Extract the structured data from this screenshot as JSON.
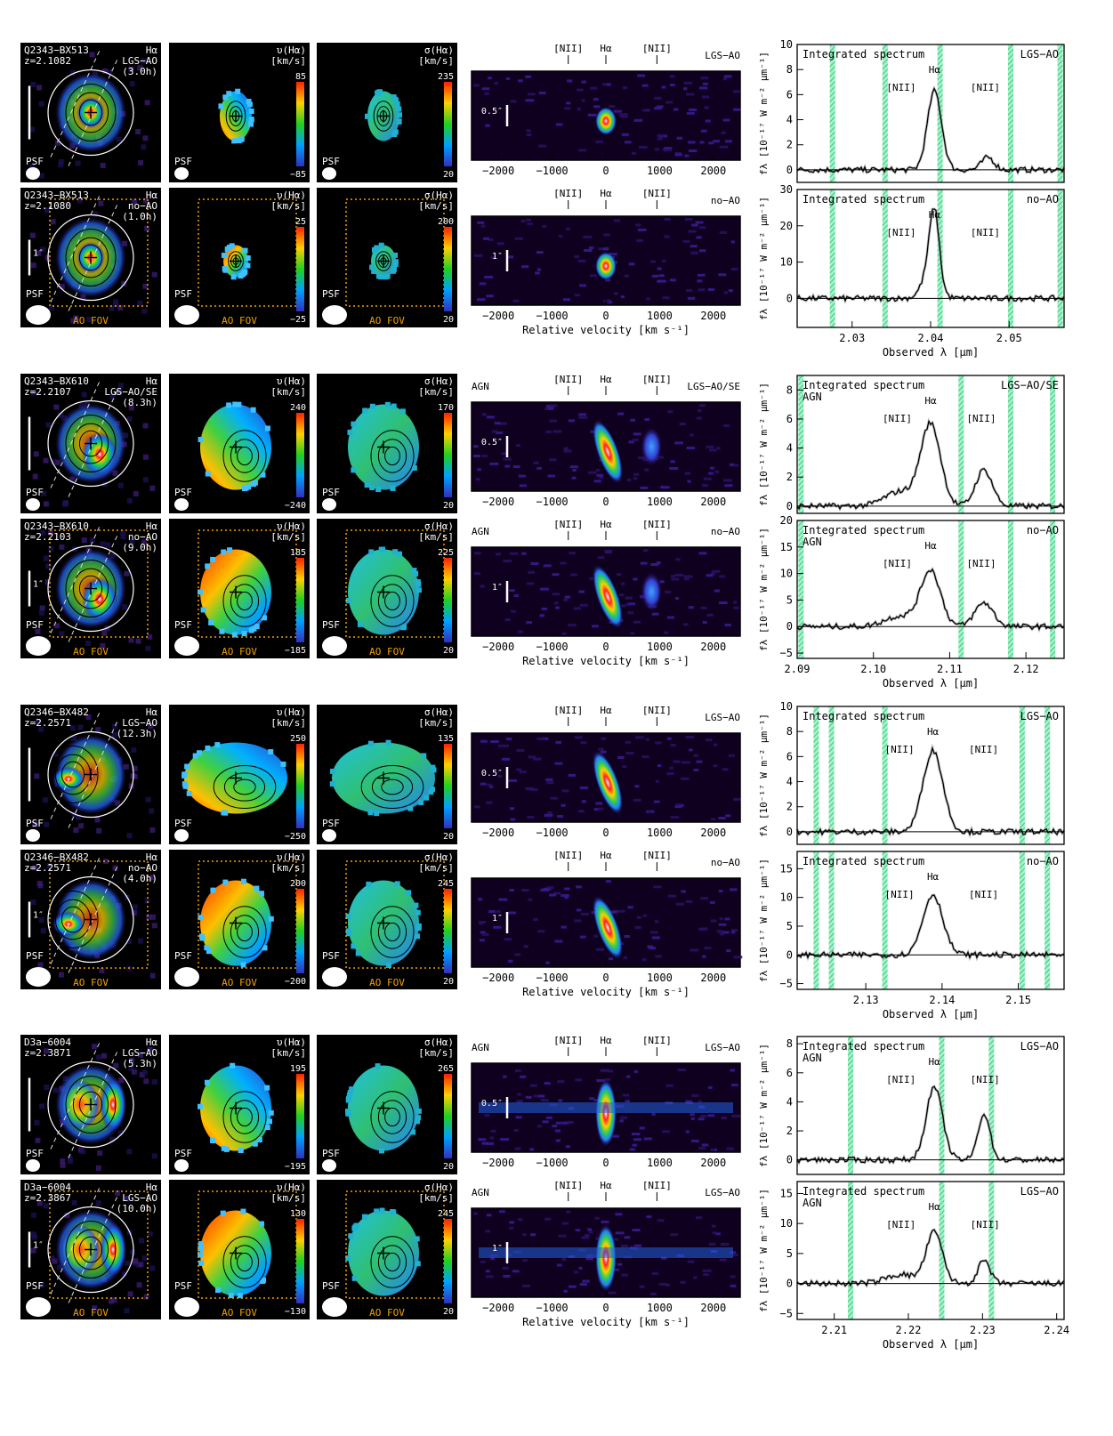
{
  "labels": {
    "psf": "PSF",
    "ao_fov": "AO FOV",
    "halpha": "Hα",
    "nii": "[NII]",
    "integrated_spectrum": "Integrated spectrum",
    "agn": "AGN",
    "velocity_map_title": "υ(Hα)",
    "dispersion_map_title": "σ(Hα)",
    "map_unit": "[km/s]",
    "arcsec_1": "1″",
    "arcsec_05": "0.5″",
    "pv_xlabel": "Relative velocity  [km s⁻¹]",
    "spec_xlabel": "Observed λ  [μm]",
    "spec_ylabel": "fλ [10⁻¹⁷ W m⁻² μm⁻¹]"
  },
  "pv_ticks": [
    "−2000",
    "−1000",
    "0",
    "1000",
    "2000"
  ],
  "rows": [
    {
      "object": "Q2343−BX513",
      "redshift": "z=2.1082",
      "mode": "LGS−AO",
      "exptime": "(3.0h)",
      "vmax": "85",
      "vmin": "−85",
      "smax": "235",
      "smin": "20",
      "scale": "0.5″",
      "agn": false,
      "ao_fov": false,
      "colors": {
        "peak": "#ffffff",
        "body": "#00c8ff"
      },
      "spec": {
        "ylim": [
          -1,
          10
        ],
        "yticks": [
          "0",
          "2",
          "4",
          "6",
          "8",
          "10"
        ],
        "xlim": [
          2.023,
          2.057
        ],
        "xticks": [],
        "peaks": [
          {
            "x": 2.0405,
            "h": 6.3,
            "w": 0.0009
          },
          {
            "x": 2.0473,
            "h": 1.0,
            "w": 0.0008
          }
        ],
        "sky": [
          2.0275,
          2.0342,
          2.0412,
          2.0502,
          2.0565
        ],
        "mode": "LGS−AO"
      }
    },
    {
      "object": "Q2343−BX513",
      "redshift": "z=2.1080",
      "mode": "no−AO",
      "exptime": "(1.0h)",
      "vmax": "25",
      "vmin": "−25",
      "smax": "200",
      "smin": "20",
      "scale": "1″",
      "agn": false,
      "ao_fov": true,
      "colors": {
        "peak": "#ffffff",
        "body": "#00c8ff"
      },
      "spec": {
        "ylim": [
          -8,
          30
        ],
        "yticks": [
          "0",
          "10",
          "20",
          "30"
        ],
        "xlim": [
          2.023,
          2.057
        ],
        "xticks": [
          "2.03",
          "2.04",
          "2.05"
        ],
        "peaks": [
          {
            "x": 2.0405,
            "h": 18,
            "w": 0.0006
          },
          {
            "x": 2.04,
            "h": 8,
            "w": 0.001
          }
        ],
        "sky": [
          2.0275,
          2.0342,
          2.0412,
          2.0502,
          2.0565
        ],
        "mode": "no−AO"
      }
    },
    {
      "object": "Q2343−BX610",
      "redshift": "z=2.2107",
      "mode": "LGS−AO/SE",
      "exptime": "(8.3h)",
      "vmax": "240",
      "vmin": "−240",
      "smax": "170",
      "smin": "20",
      "scale": "0.5″",
      "agn": true,
      "ao_fov": false,
      "colors": {
        "peak": "#ffffff",
        "body": "#3070ff"
      },
      "spec": {
        "ylim": [
          -0.5,
          9
        ],
        "yticks": [
          "0",
          "2",
          "4",
          "6",
          "8"
        ],
        "xlim": [
          2.09,
          2.125
        ],
        "xticks": [],
        "peaks": [
          {
            "x": 2.1075,
            "h": 5.6,
            "w": 0.0013
          },
          {
            "x": 2.1145,
            "h": 2.5,
            "w": 0.0011
          },
          {
            "x": 2.1035,
            "h": 1.0,
            "w": 0.002
          }
        ],
        "sky": [
          2.0905,
          2.1115,
          2.118,
          2.1235
        ],
        "mode": "LGS−AO/SE"
      }
    },
    {
      "object": "Q2343−BX610",
      "redshift": "z=2.2103",
      "mode": "no−AO",
      "exptime": "(9.0h)",
      "vmax": "185",
      "vmin": "−185",
      "smax": "225",
      "smin": "20",
      "scale": "1″",
      "agn": true,
      "ao_fov": true,
      "colors": {
        "peak": "#ffffff",
        "body": "#40c040"
      },
      "spec": {
        "ylim": [
          -6,
          20
        ],
        "yticks": [
          "−5",
          "0",
          "5",
          "10",
          "15",
          "20"
        ],
        "xlim": [
          2.09,
          2.125
        ],
        "xticks": [
          "2.09",
          "2.10",
          "2.11",
          "2.12"
        ],
        "peaks": [
          {
            "x": 2.1075,
            "h": 10.5,
            "w": 0.0013
          },
          {
            "x": 2.1145,
            "h": 4.5,
            "w": 0.0012
          },
          {
            "x": 2.1035,
            "h": 2.0,
            "w": 0.002
          }
        ],
        "sky": [
          2.0905,
          2.1115,
          2.118,
          2.1235
        ],
        "mode": "no−AO"
      }
    },
    {
      "object": "Q2346−BX482",
      "redshift": "z=2.2571",
      "mode": "LGS−AO",
      "exptime": "(12.3h)",
      "vmax": "250",
      "vmin": "−250",
      "smax": "135",
      "smin": "20",
      "scale": "0.5″",
      "agn": false,
      "ao_fov": false,
      "colors": {
        "peak": "#ffffff",
        "body": "#3070ff"
      },
      "spec": {
        "ylim": [
          -1,
          10
        ],
        "yticks": [
          "0",
          "2",
          "4",
          "6",
          "8",
          "10"
        ],
        "xlim": [
          2.121,
          2.156
        ],
        "xticks": [],
        "peaks": [
          {
            "x": 2.1388,
            "h": 6.5,
            "w": 0.0013
          }
        ],
        "sky": [
          2.1235,
          2.1255,
          2.1325,
          2.1505,
          2.1538
        ],
        "mode": "LGS−AO"
      }
    },
    {
      "object": "Q2346−BX482",
      "redshift": "z=2.2571",
      "mode": "no−AO",
      "exptime": "(4.0h)",
      "vmax": "200",
      "vmin": "−200",
      "smax": "245",
      "smin": "20",
      "scale": "1″",
      "agn": false,
      "ao_fov": true,
      "colors": {
        "peak": "#ffffff",
        "body": "#40c040"
      },
      "spec": {
        "ylim": [
          -6,
          18
        ],
        "yticks": [
          "−5",
          "0",
          "5",
          "10",
          "15"
        ],
        "xlim": [
          2.121,
          2.156
        ],
        "xticks": [
          "2.13",
          "2.14",
          "2.15"
        ],
        "peaks": [
          {
            "x": 2.1388,
            "h": 10.5,
            "w": 0.0013
          }
        ],
        "sky": [
          2.1235,
          2.1255,
          2.1325,
          2.1505,
          2.1538
        ],
        "mode": "no−AO"
      }
    },
    {
      "object": "D3a−6004",
      "redshift": "z=2.3871",
      "mode": "LGS−AO",
      "exptime": "(5.3h)",
      "vmax": "195",
      "vmin": "−195",
      "smax": "265",
      "smin": "20",
      "scale": "0.5″",
      "agn": true,
      "ao_fov": false,
      "colors": {
        "peak": "#ffffff",
        "body": "#30d0ff"
      },
      "spec": {
        "ylim": [
          -1,
          8.5
        ],
        "yticks": [
          "0",
          "2",
          "4",
          "6",
          "8"
        ],
        "xlim": [
          2.205,
          2.241
        ],
        "xticks": [],
        "peaks": [
          {
            "x": 2.2235,
            "h": 5.0,
            "w": 0.0011
          },
          {
            "x": 2.2302,
            "h": 3.2,
            "w": 0.0008
          }
        ],
        "sky": [
          2.2122,
          2.2245,
          2.2312
        ],
        "mode": "LGS−AO"
      }
    },
    {
      "object": "D3a−6004",
      "redshift": "z=2.3867",
      "mode": "LGS−AO",
      "exptime": "(10.0h)",
      "vmax": "130",
      "vmin": "−130",
      "smax": "245",
      "smin": "20",
      "scale": "1″",
      "agn": true,
      "ao_fov": true,
      "colors": {
        "peak": "#ffffff",
        "body": "#40d040"
      },
      "spec": {
        "ylim": [
          -6,
          17
        ],
        "yticks": [
          "−5",
          "0",
          "5",
          "10",
          "15"
        ],
        "xlim": [
          2.205,
          2.241
        ],
        "xticks": [
          "2.21",
          "2.22",
          "2.23",
          "2.24"
        ],
        "peaks": [
          {
            "x": 2.2235,
            "h": 8.5,
            "w": 0.0011
          },
          {
            "x": 2.2302,
            "h": 3.8,
            "w": 0.0008
          },
          {
            "x": 2.219,
            "h": 1.5,
            "w": 0.002
          }
        ],
        "sky": [
          2.2122,
          2.2245,
          2.2312
        ],
        "mode": "LGS−AO"
      }
    }
  ]
}
